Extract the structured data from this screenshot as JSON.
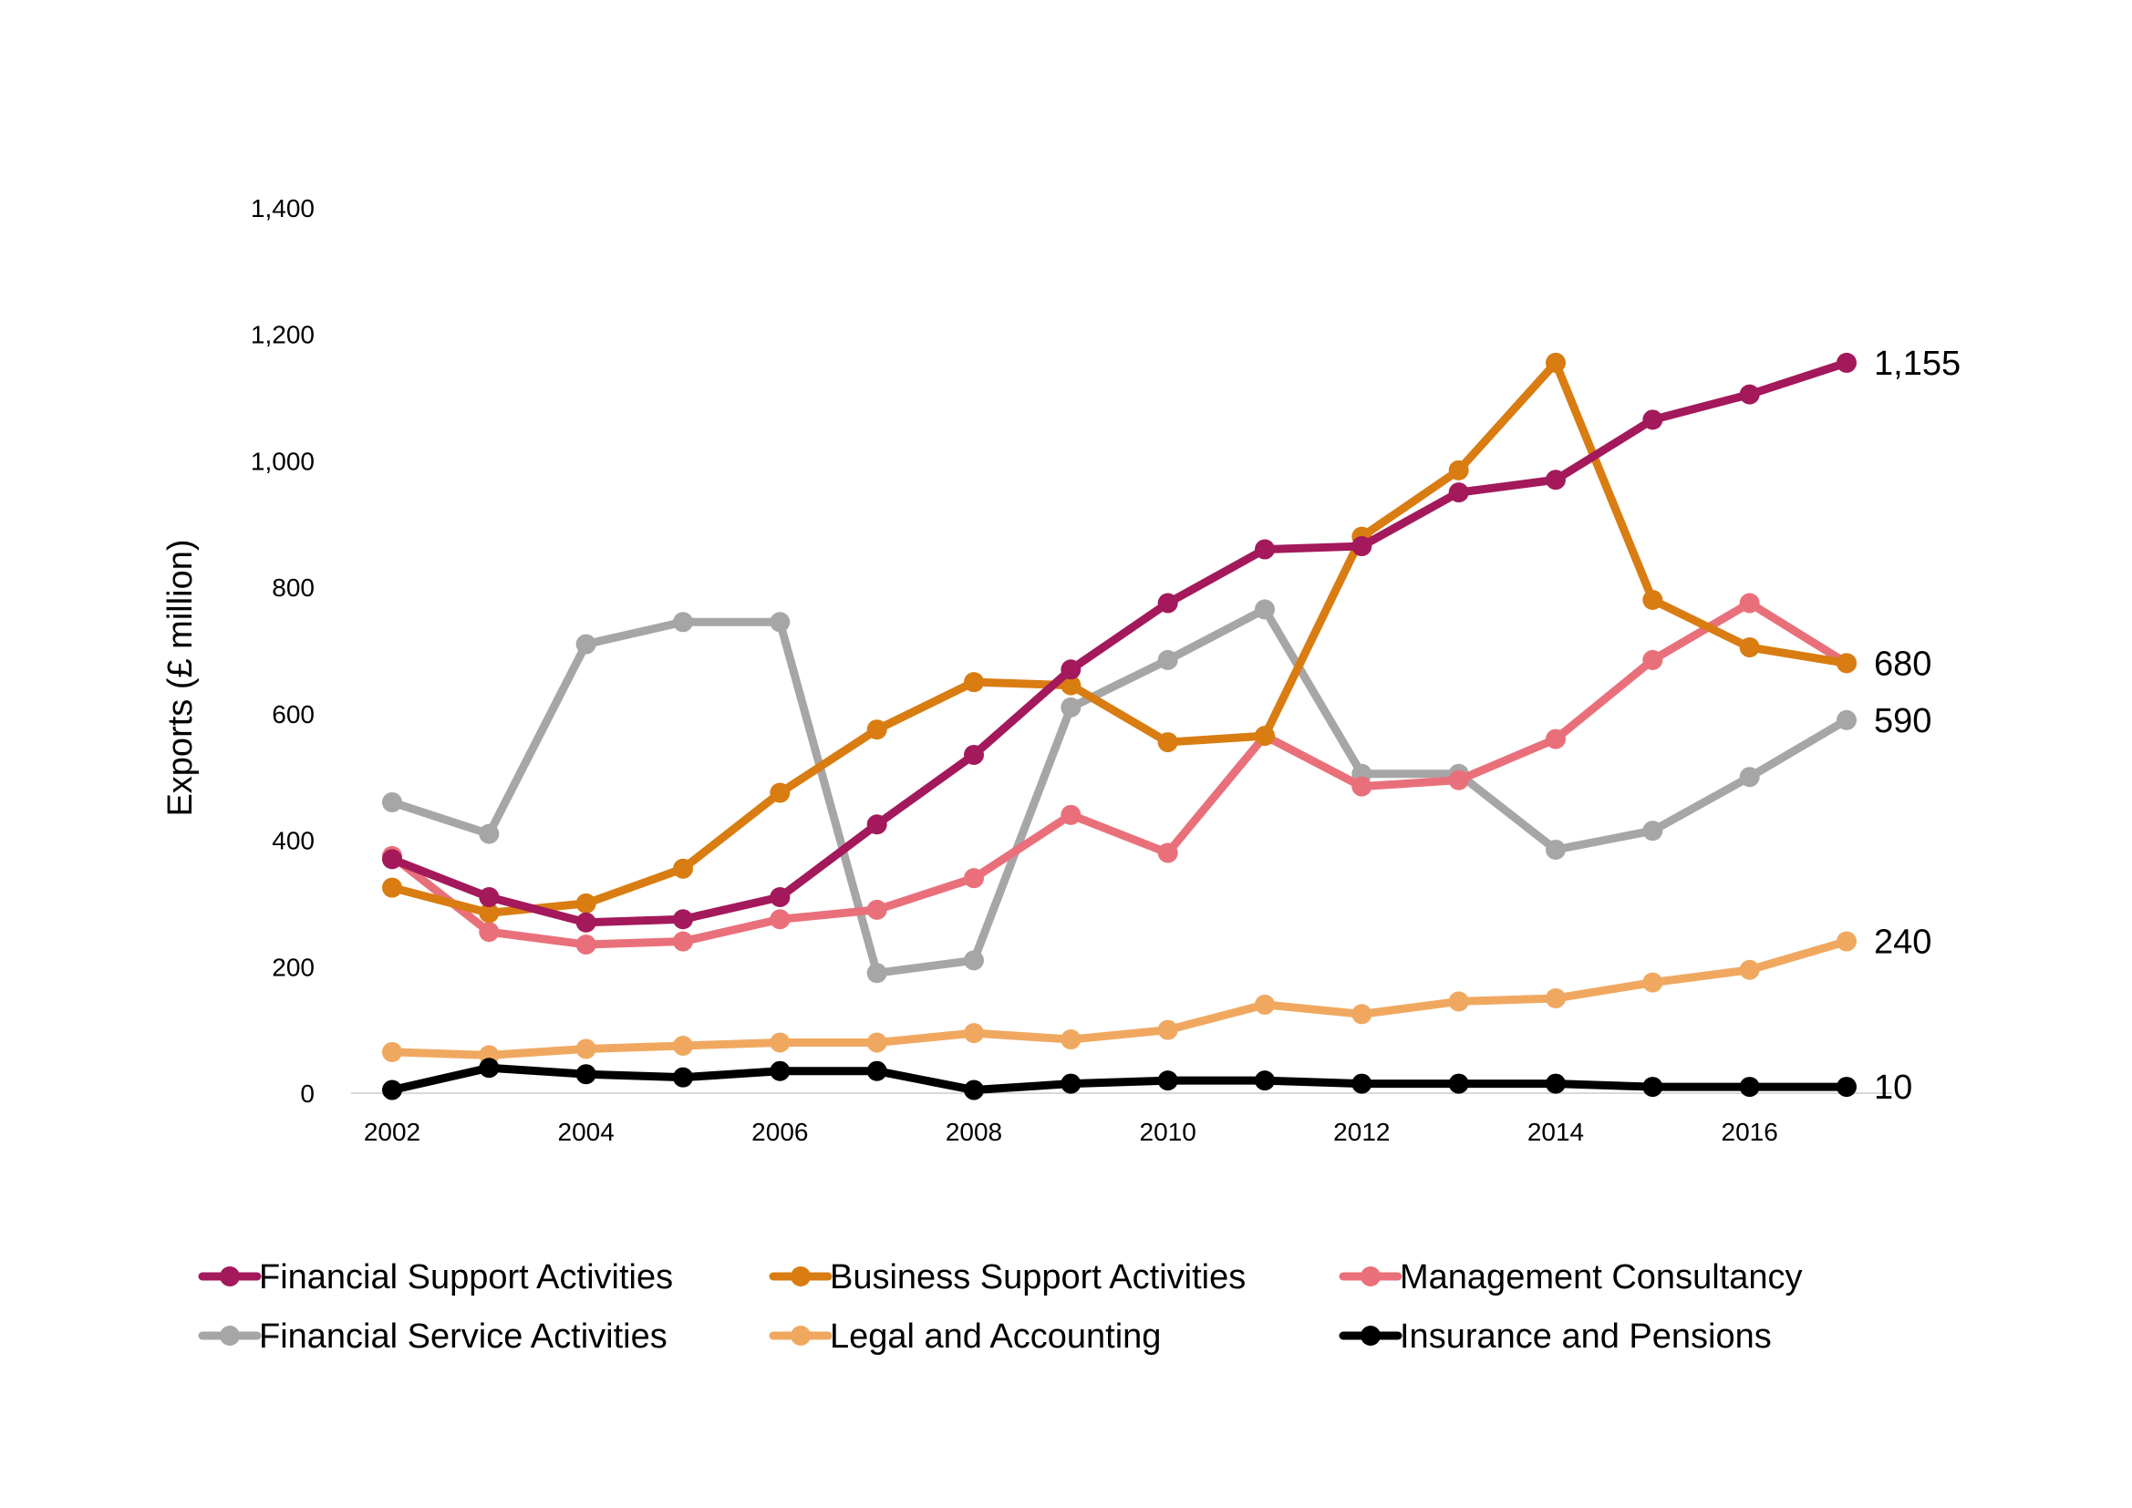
{
  "chart_data": {
    "type": "line",
    "ylabel": "Exports (£ million)",
    "xlabel": "",
    "ylim": [
      0,
      1400
    ],
    "yticks": [
      0,
      200,
      400,
      600,
      800,
      1000,
      1200,
      1400
    ],
    "ytick_labels": [
      "0",
      "200",
      "400",
      "600",
      "800",
      "1,000",
      "1,200",
      "1,400"
    ],
    "xlim": [
      2002,
      2017
    ],
    "xticks": [
      2002,
      2004,
      2006,
      2008,
      2010,
      2012,
      2014,
      2016
    ],
    "xtick_labels": [
      "2002",
      "2004",
      "2006",
      "2008",
      "2010",
      "2012",
      "2014",
      "2016"
    ],
    "x": [
      2002,
      2003,
      2004,
      2005,
      2006,
      2007,
      2008,
      2009,
      2010,
      2011,
      2012,
      2013,
      2014,
      2015,
      2016,
      2017
    ],
    "grid": false,
    "legend_position": "bottom",
    "series": [
      {
        "name": "Financial Support Activities",
        "color": "#a3195b",
        "values": [
          370,
          310,
          270,
          275,
          310,
          425,
          535,
          670,
          775,
          860,
          865,
          950,
          970,
          1065,
          1105,
          1155
        ],
        "end_label": "1,155"
      },
      {
        "name": "Business Support Activities",
        "color": "#d97c12",
        "values": [
          325,
          285,
          300,
          355,
          475,
          575,
          650,
          645,
          555,
          565,
          880,
          985,
          1155,
          780,
          705,
          680
        ],
        "end_label": ""
      },
      {
        "name": "Management Consultancy",
        "color": "#e9707a",
        "values": [
          375,
          255,
          235,
          240,
          275,
          290,
          340,
          440,
          380,
          565,
          485,
          495,
          560,
          685,
          775,
          680
        ],
        "end_label": "680"
      },
      {
        "name": "Financial Service Activities",
        "color": "#a6a6a6",
        "values": [
          460,
          410,
          710,
          745,
          745,
          190,
          210,
          610,
          685,
          765,
          505,
          505,
          385,
          415,
          500,
          590
        ],
        "end_label": "590"
      },
      {
        "name": "Legal and Accounting",
        "color": "#f0a860",
        "values": [
          65,
          60,
          70,
          75,
          80,
          80,
          95,
          85,
          100,
          140,
          125,
          145,
          150,
          175,
          195,
          240
        ],
        "end_label": "240"
      },
      {
        "name": "Insurance and Pensions",
        "color": "#000000",
        "values": [
          5,
          40,
          30,
          25,
          35,
          35,
          5,
          15,
          20,
          20,
          15,
          15,
          15,
          10,
          10,
          10
        ],
        "end_label": "10"
      }
    ]
  }
}
